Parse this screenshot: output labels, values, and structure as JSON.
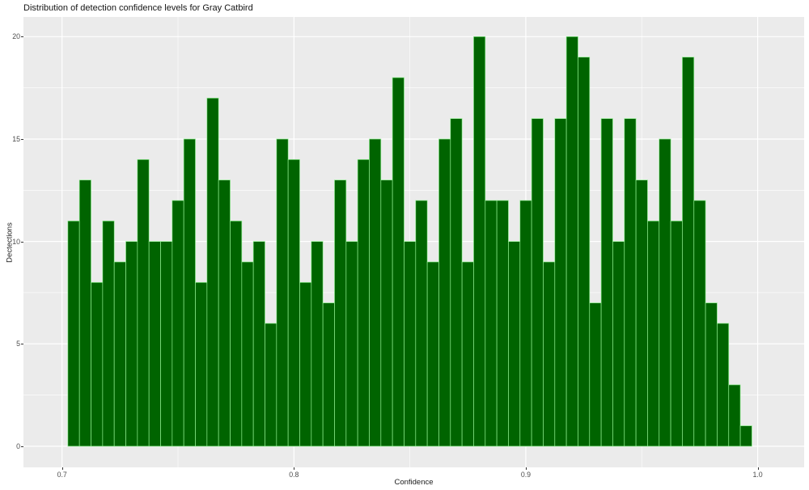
{
  "page_title": "Distribution of detection confidence levels for Gray Catbird",
  "chart_data": {
    "type": "bar",
    "subtype": "histogram",
    "title": "Distribution of detection confidence levels for Gray Catbird",
    "xlabel": "Confidence",
    "ylabel": "Dectections",
    "legend": "none",
    "grid": "on",
    "bin_start": 0.7025,
    "bin_width": 0.005,
    "bar_values": [
      11,
      13,
      8,
      11,
      9,
      10,
      14,
      10,
      10,
      12,
      15,
      8,
      17,
      13,
      11,
      9,
      10,
      6,
      15,
      14,
      8,
      10,
      7,
      13,
      10,
      14,
      15,
      13,
      18,
      10,
      12,
      9,
      15,
      16,
      9,
      20,
      12,
      12,
      10,
      12,
      16,
      9,
      16,
      20,
      19,
      7,
      16,
      10,
      16,
      13,
      11,
      15,
      11,
      19,
      12,
      7,
      6,
      3,
      1
    ],
    "x_axis": {
      "tick_values": [
        0.7,
        0.8,
        0.9,
        1.0
      ],
      "tick_labels": [
        "0.7",
        "0.8",
        "0.9",
        "1.0"
      ],
      "minor_tick_values": [
        0.75,
        0.85,
        0.95
      ],
      "lim": [
        0.68336,
        1.02003
      ]
    },
    "y_axis": {
      "tick_values": [
        0,
        5,
        10,
        15,
        20
      ],
      "tick_labels": [
        "0",
        "5",
        "10",
        "15",
        "20"
      ],
      "minor_tick_values": [
        2.5,
        7.5,
        12.5,
        17.5
      ],
      "lim": [
        -1.03,
        20.96
      ]
    },
    "colors": {
      "bar_fill": "#006400",
      "bar_stroke": "#90EE90",
      "panel_background": "#EBEBEB",
      "grid_major": "#FFFFFF",
      "grid_minor": "#FFFFFF",
      "tick_mark": "#333333",
      "tick_label": "#4D4D4D",
      "title": "#151515",
      "axis_title": "#1a1a1a"
    }
  }
}
